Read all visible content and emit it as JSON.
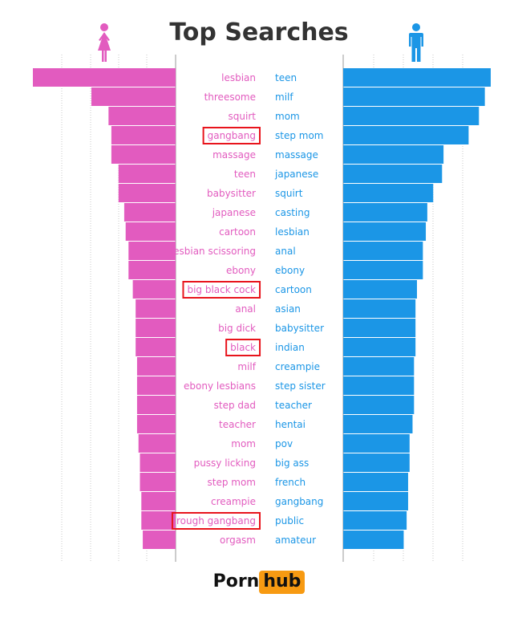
{
  "chart_data": {
    "type": "bar",
    "title": "Top Searches",
    "value_unit": "relative popularity (0-100, unlabeled)",
    "series": [
      {
        "side": "left",
        "icon": "female-icon",
        "color": "#e25bbf",
        "categories": [
          "lesbian",
          "threesome",
          "squirt",
          "gangbang",
          "massage",
          "teen",
          "babysitter",
          "japanese",
          "cartoon",
          "lesbian scissoring",
          "ebony",
          "big black cock",
          "anal",
          "big dick",
          "black",
          "milf",
          "ebony lesbians",
          "step dad",
          "teacher",
          "mom",
          "pussy licking",
          "step mom",
          "creampie",
          "rough gangbang",
          "orgasm"
        ],
        "values": [
          100,
          59,
          47,
          45,
          45,
          40,
          40,
          36,
          35,
          33,
          33,
          30,
          28,
          28,
          28,
          27,
          27,
          27,
          27,
          26,
          25,
          25,
          24,
          24,
          23
        ],
        "highlighted": [
          "gangbang",
          "big black cock",
          "black",
          "rough gangbang"
        ]
      },
      {
        "side": "right",
        "icon": "male-icon",
        "color": "#1b96e6",
        "categories": [
          "teen",
          "milf",
          "mom",
          "step mom",
          "massage",
          "japanese",
          "squirt",
          "casting",
          "lesbian",
          "anal",
          "ebony",
          "cartoon",
          "asian",
          "babysitter",
          "indian",
          "creampie",
          "step sister",
          "teacher",
          "hentai",
          "pov",
          "big ass",
          "french",
          "gangbang",
          "public",
          "amateur"
        ],
        "values": [
          100,
          96,
          92,
          85,
          68,
          67,
          61,
          57,
          56,
          54,
          54,
          50,
          49,
          49,
          49,
          48,
          48,
          48,
          47,
          45,
          45,
          44,
          44,
          43,
          41
        ],
        "highlighted": []
      }
    ],
    "grid": true,
    "highlight_color": "#e8141c"
  },
  "logo": {
    "part1": "Porn",
    "part2": "hub",
    "accent": "#f79a12"
  }
}
